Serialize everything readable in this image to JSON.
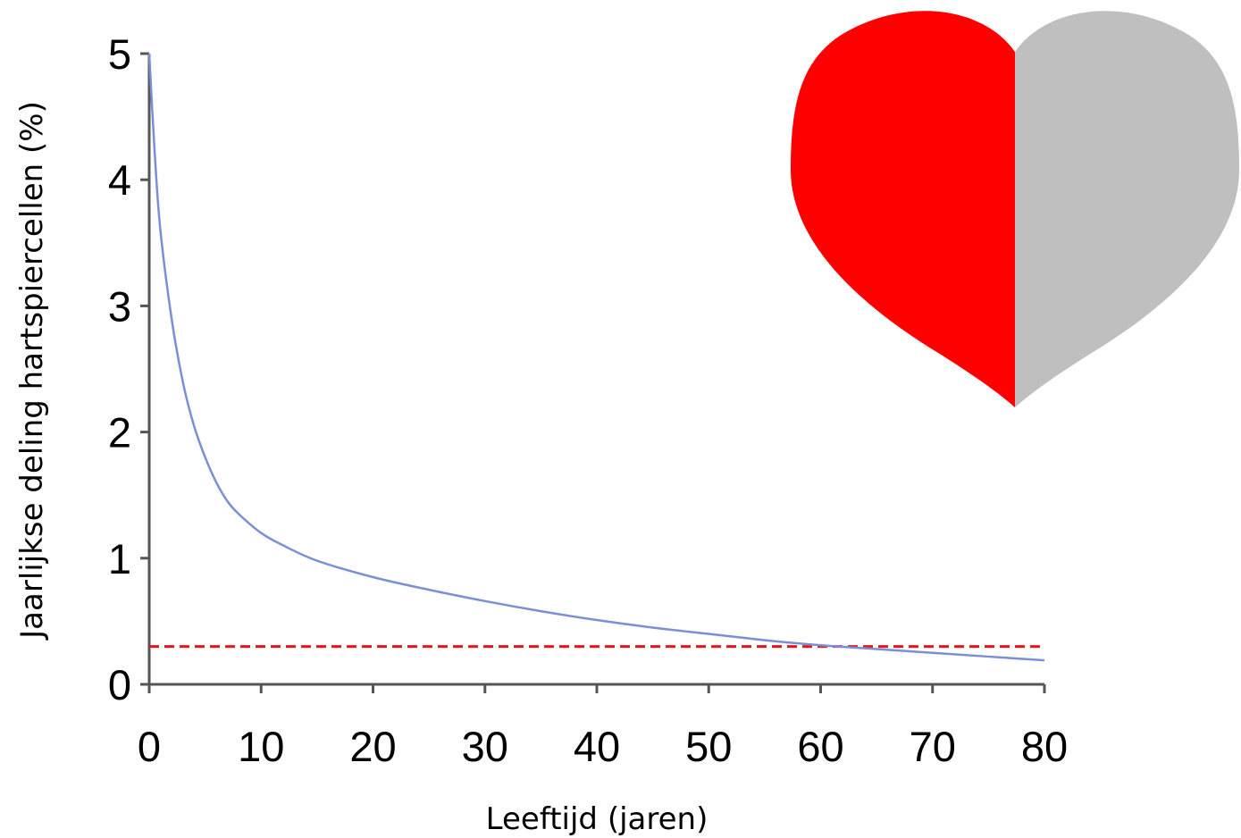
{
  "chart_data": {
    "type": "line",
    "xlabel": "Leeftijd (jaren)",
    "ylabel": "Jaarlijkse deling hartspiercellen  (%)",
    "xlim": [
      0,
      80
    ],
    "ylim": [
      0,
      5
    ],
    "x_ticks": [
      "0",
      "10",
      "20",
      "30",
      "40",
      "50",
      "60",
      "70",
      "80"
    ],
    "y_ticks": [
      "0",
      "1",
      "2",
      "3",
      "4",
      "5"
    ],
    "grid": false,
    "series": [
      {
        "color": "#7a8fd6",
        "x": [
          0,
          0.5,
          1,
          2,
          3,
          4,
          5,
          6,
          7,
          8,
          10,
          12,
          15,
          20,
          25,
          30,
          35,
          40,
          45,
          50,
          55,
          60,
          65,
          70,
          75,
          80
        ],
        "y": [
          5.0,
          4.2,
          3.6,
          2.9,
          2.4,
          2.05,
          1.8,
          1.6,
          1.45,
          1.35,
          1.2,
          1.1,
          0.98,
          0.85,
          0.75,
          0.66,
          0.58,
          0.51,
          0.45,
          0.4,
          0.35,
          0.31,
          0.28,
          0.25,
          0.22,
          0.19
        ]
      }
    ],
    "reference_lines": [
      {
        "orientation": "horizontal",
        "y": 0.3,
        "style": "dashed",
        "color": "#e8141c"
      }
    ]
  },
  "heart": {
    "left_color": "#ff0000",
    "right_color": "#bfbfbf"
  }
}
